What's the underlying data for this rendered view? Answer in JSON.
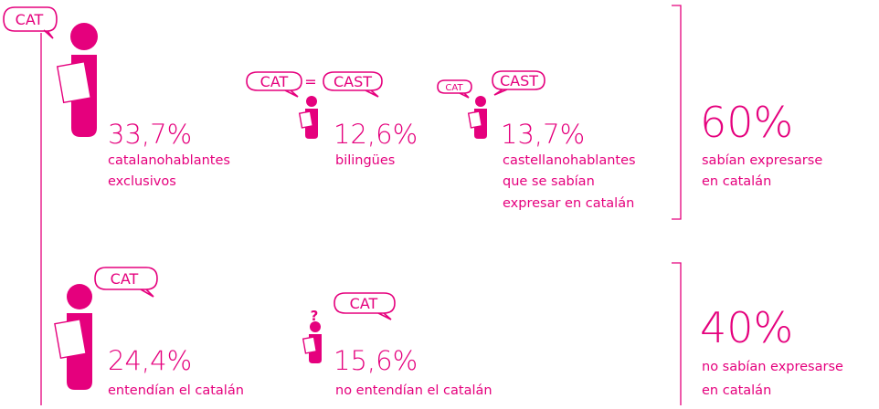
{
  "intro_bubble": "CAT",
  "groups": [
    {
      "percent": "33,7%",
      "label": [
        "catalanohablantes",
        "exclusivos"
      ]
    },
    {
      "percent": "12,6%",
      "label": [
        "bilingües"
      ],
      "bubbles": [
        "CAT",
        "=",
        "CAST"
      ]
    },
    {
      "percent": "13,7%",
      "label": [
        "castellanohablantes",
        "que se sabían",
        "expresar en catalán"
      ],
      "bubbles": [
        "CAT",
        "CAST"
      ]
    },
    {
      "percent": "24,4%",
      "label": [
        "entendían el catalán"
      ],
      "bubbles": [
        "CAT"
      ]
    },
    {
      "percent": "15,6%",
      "label": [
        "no entendían el catalán"
      ],
      "bubbles": [
        "?",
        "CAT"
      ]
    }
  ],
  "summaries": [
    {
      "percent": "60%",
      "label": [
        "sabían expresarse",
        "en catalán"
      ]
    },
    {
      "percent": "40%",
      "label": [
        "no sabían expresarse",
        "en catalán"
      ]
    }
  ]
}
